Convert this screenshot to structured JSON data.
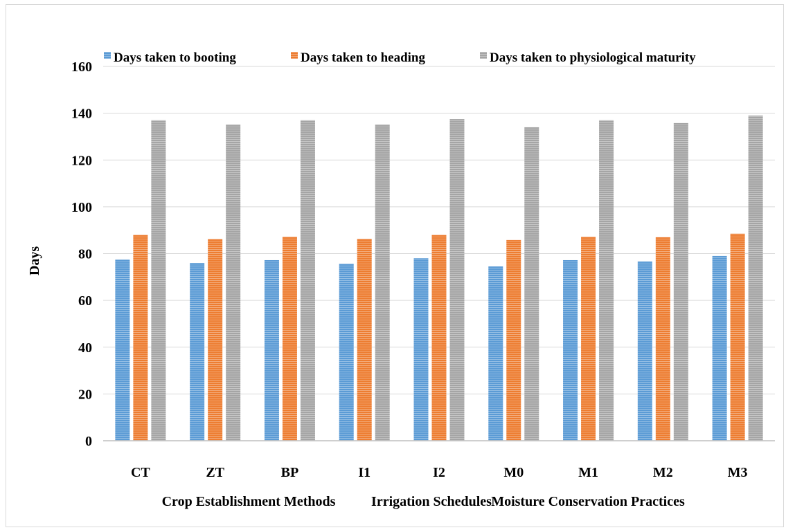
{
  "chart_data": {
    "type": "bar",
    "ylabel": "Days",
    "ylim": [
      0,
      160
    ],
    "yticks": [
      0,
      20,
      40,
      60,
      80,
      100,
      120,
      140,
      160
    ],
    "grid": true,
    "legend_position": "top",
    "categories": [
      "CT",
      "ZT",
      "BP",
      "I1",
      "I2",
      "M0",
      "M1",
      "M2",
      "M3"
    ],
    "group_labels": [
      "Crop Establishment Methods",
      "Irrigation Schedules",
      "Moisture Conservation Practices"
    ],
    "series": [
      {
        "name": "Days taken to booting",
        "color": "#5b9bd5",
        "values": [
          77.5,
          76,
          77.2,
          75.7,
          78,
          74.5,
          77.2,
          76.7,
          79
        ]
      },
      {
        "name": "Days taken to heading",
        "color": "#ed7d31",
        "values": [
          88,
          86.2,
          87.2,
          86.3,
          88,
          85.8,
          87.2,
          87,
          88.5
        ]
      },
      {
        "name": "Days taken to physiological maturity",
        "color": "#a5a5a5",
        "values": [
          137,
          135.2,
          137,
          135.2,
          137.5,
          134,
          137,
          135.8,
          139
        ]
      }
    ]
  }
}
